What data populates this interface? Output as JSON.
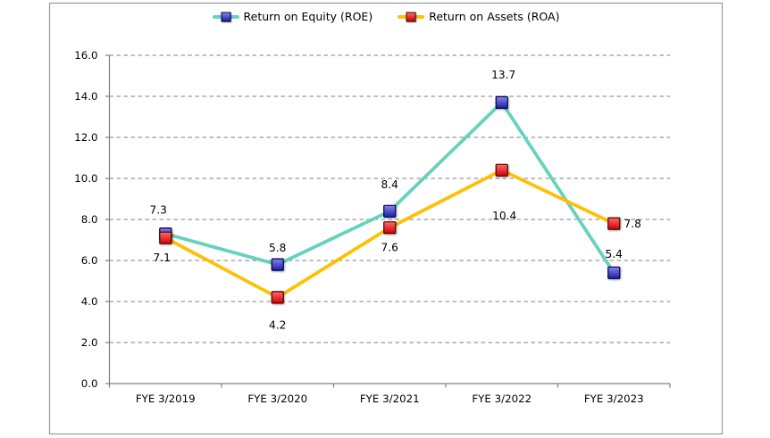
{
  "chart_data": {
    "type": "line",
    "title": "",
    "xlabel": "",
    "ylabel": "",
    "categories": [
      "FYE 3/2019",
      "FYE 3/2020",
      "FYE 3/2021",
      "FYE 3/2022",
      "FYE 3/2023"
    ],
    "series": [
      {
        "name": "Return on Equity (ROE)",
        "values": [
          7.3,
          5.8,
          8.4,
          13.7,
          5.4
        ],
        "labels": [
          "7.3",
          "5.8",
          "8.4",
          "13.7",
          "5.4"
        ],
        "line_color": "#66D2BE",
        "marker": {
          "shape": "square",
          "fill_top": "#8585EA",
          "fill_bottom": "#1E1EA0",
          "border": "#00004D"
        }
      },
      {
        "name": "Return on Assets (ROA)",
        "values": [
          7.1,
          4.2,
          7.6,
          10.4,
          7.8
        ],
        "labels": [
          "7.1",
          "4.2",
          "7.6",
          "10.4",
          "7.8"
        ],
        "line_color": "#FFC003",
        "marker": {
          "shape": "square",
          "fill_top": "#FF6A6A",
          "fill_bottom": "#CE0000",
          "border": "#4D0000"
        }
      }
    ],
    "ylim": [
      0,
      16
    ],
    "ytick_step": 2,
    "ytick_labels": [
      "0.0",
      "2.0",
      "4.0",
      "6.0",
      "8.0",
      "10.0",
      "12.0",
      "14.0",
      "16.0"
    ],
    "grid": {
      "horizontal": true,
      "style": "dashed"
    },
    "legend_position": "top-center",
    "label_offsets": [
      [
        [
          -8,
          -27
        ],
        [
          0,
          -19
        ],
        [
          0,
          -30
        ],
        [
          2,
          -31
        ],
        [
          0,
          -21
        ]
      ],
      [
        [
          -4,
          22
        ],
        [
          0,
          31
        ],
        [
          0,
          22
        ],
        [
          3,
          51
        ],
        [
          21,
          0
        ]
      ]
    ],
    "colors": {
      "axis": "#7F7F7F",
      "gridline": "#7F7F7F",
      "frame_border": "#999999",
      "text": "#000000",
      "background": "#FFFFFF"
    }
  }
}
